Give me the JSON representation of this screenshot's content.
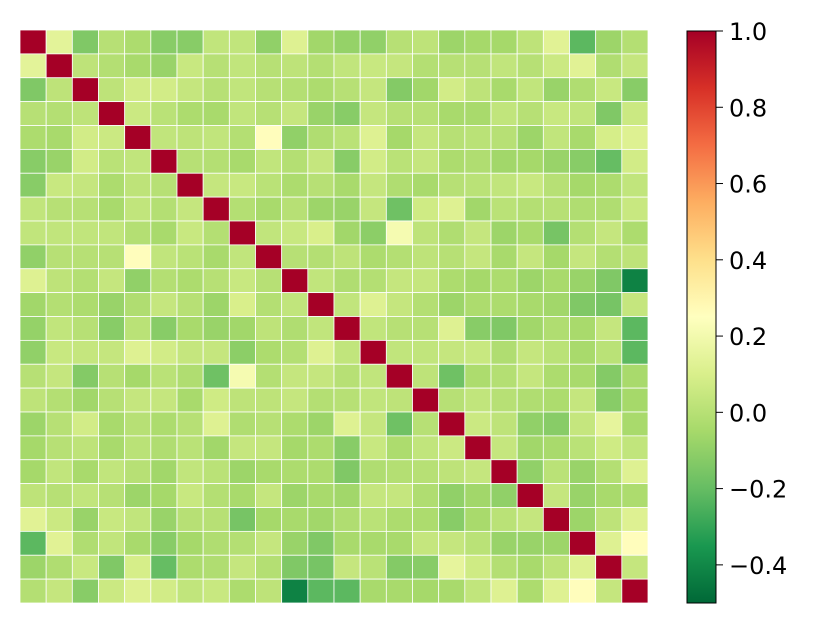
{
  "chart_data": {
    "type": "heatmap",
    "title": "",
    "xlabel": "",
    "ylabel": "",
    "n_rows": 24,
    "n_cols": 24,
    "colormap": "RdYlGn_r",
    "cell_border_color": "#ffffff",
    "vmin": -0.5,
    "vmax": 1.0,
    "show_x_ticks": false,
    "show_y_ticks": false,
    "colorbar": {
      "position": "right",
      "ticks": [
        1.0,
        0.8,
        0.6,
        0.4,
        0.2,
        0.0,
        -0.2,
        -0.4
      ],
      "tick_labels": [
        "1.0",
        "0.8",
        "0.6",
        "0.4",
        "0.2",
        "0.0",
        "−0.2",
        "−0.4"
      ]
    },
    "values": [
      [
        1.0,
        0.14,
        -0.14,
        0.0,
        -0.03,
        -0.12,
        -0.12,
        0.03,
        0.03,
        -0.1,
        0.12,
        -0.06,
        -0.09,
        -0.1,
        0.0,
        0.02,
        -0.07,
        -0.05,
        -0.05,
        0.02,
        0.13,
        -0.22,
        -0.07,
        -0.01
      ],
      [
        0.14,
        1.0,
        0.02,
        -0.01,
        -0.04,
        -0.08,
        0.05,
        0.0,
        0.03,
        0.0,
        0.02,
        -0.01,
        0.03,
        0.05,
        0.04,
        -0.01,
        0.0,
        0.0,
        0.03,
        0.0,
        0.06,
        0.13,
        -0.02,
        0.04
      ],
      [
        -0.14,
        0.02,
        1.0,
        0.02,
        0.08,
        0.08,
        0.04,
        0.0,
        0.03,
        0.0,
        -0.01,
        -0.03,
        0.0,
        0.04,
        -0.13,
        -0.06,
        0.08,
        0.02,
        -0.04,
        0.03,
        -0.08,
        -0.02,
        0.05,
        -0.12
      ],
      [
        0.0,
        -0.01,
        0.02,
        1.0,
        0.06,
        0.01,
        -0.03,
        -0.04,
        0.03,
        0.0,
        0.04,
        -0.08,
        -0.12,
        0.04,
        0.0,
        0.0,
        -0.04,
        -0.04,
        0.03,
        0.0,
        0.05,
        0.03,
        -0.14,
        0.06
      ],
      [
        -0.03,
        -0.04,
        0.08,
        0.06,
        1.0,
        0.03,
        0.02,
        0.03,
        -0.01,
        0.26,
        -0.1,
        -0.02,
        0.01,
        0.12,
        -0.05,
        0.04,
        0.0,
        0.01,
        0.0,
        -0.07,
        0.03,
        -0.04,
        0.09,
        0.12
      ],
      [
        -0.12,
        -0.08,
        0.08,
        0.01,
        0.03,
        1.0,
        0.0,
        -0.01,
        -0.04,
        0.03,
        -0.01,
        0.04,
        -0.12,
        0.08,
        0.01,
        0.04,
        -0.03,
        -0.02,
        -0.06,
        -0.05,
        -0.08,
        -0.12,
        -0.2,
        0.08
      ],
      [
        -0.12,
        0.05,
        0.04,
        -0.03,
        0.02,
        0.0,
        1.0,
        0.04,
        0.05,
        0.01,
        -0.03,
        0.0,
        -0.04,
        0.04,
        -0.02,
        -0.04,
        0.0,
        0.01,
        0.03,
        0.05,
        0.0,
        -0.05,
        -0.03,
        0.03
      ],
      [
        0.03,
        0.0,
        0.0,
        -0.04,
        0.03,
        -0.01,
        0.04,
        1.0,
        -0.01,
        -0.04,
        0.0,
        -0.07,
        -0.08,
        0.04,
        -0.18,
        0.07,
        0.12,
        -0.06,
        0.01,
        -0.01,
        0.0,
        -0.02,
        -0.02,
        0.05
      ],
      [
        0.03,
        0.03,
        0.03,
        0.03,
        -0.01,
        -0.04,
        0.05,
        -0.01,
        1.0,
        0.03,
        0.05,
        0.1,
        -0.06,
        -0.11,
        0.21,
        0.02,
        -0.02,
        0.04,
        -0.07,
        -0.04,
        -0.16,
        -0.01,
        0.04,
        -0.03
      ],
      [
        -0.1,
        0.0,
        0.0,
        0.0,
        0.26,
        0.03,
        0.01,
        -0.04,
        0.03,
        1.0,
        0.0,
        -0.01,
        0.02,
        -0.03,
        -0.01,
        0.02,
        0.0,
        0.04,
        -0.04,
        0.04,
        -0.05,
        0.04,
        -0.01,
        0.02
      ],
      [
        0.12,
        0.02,
        -0.01,
        0.04,
        -0.1,
        -0.01,
        -0.03,
        0.0,
        0.05,
        0.0,
        1.0,
        0.03,
        -0.02,
        -0.01,
        0.04,
        0.04,
        -0.03,
        -0.05,
        -0.03,
        -0.07,
        -0.04,
        -0.08,
        -0.14,
        -0.42
      ],
      [
        -0.06,
        -0.01,
        -0.03,
        -0.08,
        -0.02,
        0.04,
        0.0,
        -0.07,
        0.1,
        -0.01,
        0.03,
        1.0,
        0.03,
        0.12,
        0.04,
        -0.01,
        -0.07,
        -0.03,
        -0.03,
        -0.04,
        -0.06,
        -0.14,
        -0.16,
        0.04
      ],
      [
        -0.09,
        0.03,
        0.0,
        -0.12,
        0.01,
        -0.12,
        -0.04,
        -0.08,
        -0.06,
        0.02,
        -0.02,
        0.03,
        1.0,
        0.03,
        0.0,
        0.0,
        0.12,
        -0.12,
        -0.14,
        -0.06,
        -0.02,
        -0.04,
        0.04,
        -0.22
      ],
      [
        -0.1,
        0.05,
        0.04,
        0.04,
        0.12,
        0.08,
        0.04,
        0.04,
        -0.11,
        -0.03,
        -0.01,
        0.12,
        0.03,
        1.0,
        0.03,
        0.03,
        0.04,
        0.05,
        -0.02,
        0.04,
        0.01,
        -0.04,
        0.01,
        -0.22
      ],
      [
        0.0,
        0.04,
        -0.13,
        0.0,
        -0.05,
        0.01,
        -0.02,
        -0.18,
        0.21,
        -0.01,
        0.04,
        0.04,
        0.0,
        0.03,
        1.0,
        0.02,
        -0.18,
        -0.03,
        -0.01,
        0.04,
        -0.03,
        -0.04,
        -0.13,
        -0.04
      ],
      [
        0.02,
        -0.01,
        -0.06,
        0.0,
        0.04,
        0.04,
        -0.04,
        0.07,
        0.02,
        0.02,
        0.04,
        -0.01,
        0.0,
        0.03,
        0.02,
        1.0,
        0.0,
        0.03,
        0.0,
        -0.02,
        -0.03,
        0.04,
        -0.12,
        -0.05
      ],
      [
        -0.07,
        0.0,
        0.08,
        -0.04,
        0.0,
        -0.03,
        0.0,
        0.12,
        -0.02,
        0.0,
        -0.03,
        -0.07,
        0.12,
        0.04,
        -0.18,
        0.0,
        1.0,
        0.06,
        0.02,
        -0.1,
        -0.12,
        0.04,
        0.15,
        -0.04
      ],
      [
        -0.05,
        0.0,
        0.02,
        -0.04,
        0.01,
        -0.02,
        0.01,
        -0.06,
        0.04,
        0.04,
        -0.05,
        -0.03,
        -0.12,
        0.05,
        -0.03,
        0.03,
        0.06,
        1.0,
        0.04,
        -0.06,
        -0.04,
        0.01,
        0.07,
        0.03
      ],
      [
        -0.05,
        0.03,
        -0.04,
        0.03,
        0.0,
        -0.06,
        0.03,
        0.01,
        -0.07,
        -0.04,
        -0.03,
        -0.03,
        -0.14,
        -0.02,
        -0.01,
        0.0,
        0.02,
        0.04,
        1.0,
        -0.1,
        0.01,
        -0.08,
        -0.01,
        0.12
      ],
      [
        0.02,
        0.0,
        0.03,
        0.0,
        -0.07,
        -0.05,
        0.05,
        -0.01,
        -0.04,
        0.04,
        -0.07,
        -0.04,
        -0.06,
        0.04,
        0.04,
        -0.02,
        -0.1,
        -0.06,
        -0.1,
        1.0,
        0.04,
        -0.08,
        -0.04,
        -0.03
      ],
      [
        0.13,
        0.06,
        -0.08,
        0.05,
        0.03,
        -0.08,
        0.0,
        0.0,
        -0.16,
        -0.05,
        -0.04,
        -0.06,
        -0.02,
        0.01,
        -0.03,
        -0.03,
        -0.12,
        -0.04,
        0.01,
        0.04,
        1.0,
        -0.07,
        0.02,
        0.12
      ],
      [
        -0.22,
        0.13,
        -0.02,
        0.03,
        -0.04,
        -0.12,
        -0.05,
        -0.02,
        -0.01,
        0.04,
        -0.08,
        -0.14,
        -0.04,
        -0.04,
        -0.04,
        0.04,
        0.04,
        0.01,
        -0.08,
        -0.08,
        -0.07,
        1.0,
        0.12,
        0.26
      ],
      [
        -0.07,
        -0.02,
        0.05,
        -0.14,
        0.09,
        -0.2,
        -0.03,
        -0.02,
        0.04,
        -0.01,
        -0.14,
        -0.16,
        0.04,
        0.01,
        -0.13,
        -0.12,
        0.15,
        0.07,
        -0.01,
        -0.04,
        0.02,
        0.12,
        1.0,
        0.04
      ],
      [
        -0.01,
        0.04,
        -0.12,
        0.06,
        0.12,
        0.08,
        0.03,
        0.05,
        -0.03,
        0.02,
        -0.42,
        -0.22,
        -0.22,
        -0.04,
        -0.04,
        -0.05,
        -0.04,
        0.03,
        0.12,
        -0.03,
        0.12,
        0.26,
        0.04,
        1.0
      ]
    ]
  }
}
